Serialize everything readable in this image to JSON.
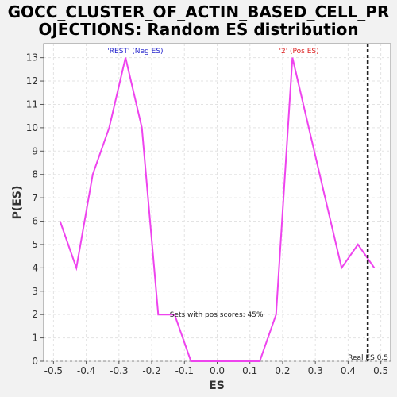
{
  "chart_data": {
    "type": "line",
    "title_line1": "GOCC_CLUSTER_OF_ACTIN_BASED_CELL_PR",
    "title_line2": "OJECTIONS: Random ES distribution",
    "xlabel": "ES",
    "ylabel": "P(ES)",
    "xlim": [
      -0.53,
      0.53
    ],
    "ylim": [
      0,
      13.6
    ],
    "x_ticks": [
      "-0.5",
      "-0.4",
      "-0.3",
      "-0.2",
      "-0.1",
      "0.0",
      "0.1",
      "0.2",
      "0.3",
      "0.4",
      "0.5"
    ],
    "y_ticks": [
      "0",
      "1",
      "2",
      "3",
      "4",
      "5",
      "6",
      "7",
      "8",
      "9",
      "10",
      "11",
      "12",
      "13"
    ],
    "grid": true,
    "series": [
      {
        "color": "#ee44ee",
        "x": [
          -0.48,
          -0.43,
          -0.38,
          -0.33,
          -0.28,
          -0.23,
          -0.18,
          -0.13,
          -0.08,
          -0.03,
          0.02,
          0.07,
          0.13,
          0.18,
          0.23,
          0.28,
          0.33,
          0.38,
          0.43,
          0.48
        ],
        "y": [
          6,
          4,
          8,
          10,
          13,
          10,
          2,
          2,
          0,
          0,
          0,
          0,
          0,
          2,
          13,
          10,
          7,
          4,
          5,
          4
        ]
      }
    ],
    "annotations": {
      "neg_label": "'REST' (Neg ES)",
      "neg_color": "#2222cc",
      "pos_label": "'2' (Pos ES)",
      "pos_color": "#dd2222",
      "pos_scores": "Sets with pos scores: 45%",
      "real_es_label": "Real ES 0.5",
      "real_es_value": 0.46
    }
  }
}
